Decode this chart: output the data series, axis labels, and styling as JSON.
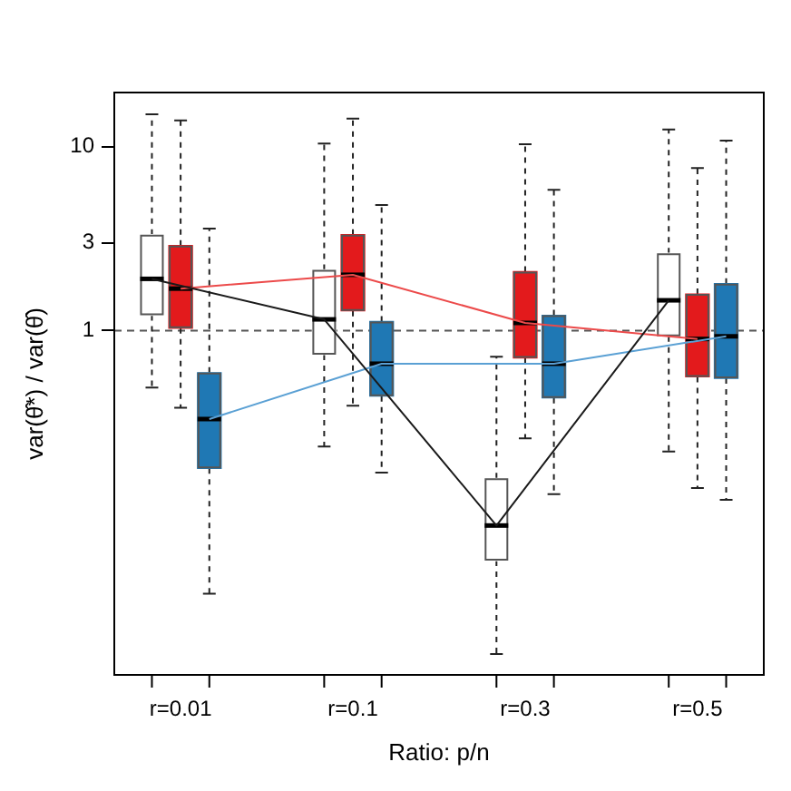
{
  "chart_data": {
    "type": "box",
    "xlabel": "Ratio: p/n",
    "ylabel": "var(θ̂*) / var(θ̂)",
    "categories": [
      "r=0.01",
      "r=0.1",
      "r=0.3",
      "r=0.5"
    ],
    "series": [
      {
        "color": "#ffffff",
        "boxes": [
          {
            "low": 0.49,
            "q1": 1.21,
            "median": 1.91,
            "q3": 3.32,
            "high": 15.0
          },
          {
            "low": 0.234,
            "q1": 0.74,
            "median": 1.15,
            "q3": 2.14,
            "high": 10.4
          },
          {
            "low": 0.0174,
            "q1": 0.056,
            "median": 0.087,
            "q3": 0.157,
            "high": 0.72
          },
          {
            "low": 0.22,
            "q1": 0.93,
            "median": 1.46,
            "q3": 2.63,
            "high": 12.4
          }
        ]
      },
      {
        "color": "#e31a1c",
        "boxes": [
          {
            "low": 0.38,
            "q1": 1.03,
            "median": 1.69,
            "q3": 2.9,
            "high": 13.9
          },
          {
            "low": 0.39,
            "q1": 1.28,
            "median": 2.01,
            "q3": 3.32,
            "high": 14.2
          },
          {
            "low": 0.259,
            "q1": 0.71,
            "median": 1.1,
            "q3": 2.09,
            "high": 10.3
          },
          {
            "low": 0.139,
            "q1": 0.56,
            "median": 0.9,
            "q3": 1.58,
            "high": 7.65
          }
        ]
      },
      {
        "color": "#1f78b4",
        "boxes": [
          {
            "low": 0.037,
            "q1": 0.178,
            "median": 0.33,
            "q3": 0.59,
            "high": 3.58
          },
          {
            "low": 0.169,
            "q1": 0.44,
            "median": 0.66,
            "q3": 1.12,
            "high": 4.81
          },
          {
            "low": 0.129,
            "q1": 0.43,
            "median": 0.66,
            "q3": 1.21,
            "high": 5.82
          },
          {
            "low": 0.12,
            "q1": 0.55,
            "median": 0.93,
            "q3": 1.8,
            "high": 10.8
          }
        ]
      },
      {
        "type": "line",
        "color": "#1a1a1a",
        "values": [
          1.91,
          1.15,
          0.087,
          1.46
        ]
      },
      {
        "type": "line",
        "color": "#ec4a4a",
        "values": [
          1.69,
          2.01,
          1.1,
          0.9
        ]
      },
      {
        "type": "line",
        "color": "#5aa0d4",
        "values": [
          0.33,
          0.66,
          0.66,
          0.93
        ]
      }
    ],
    "log": true,
    "ylim": [
      0.0134,
      19.7
    ],
    "yticks": [
      1,
      3,
      10
    ],
    "ref_lines": [
      {
        "axis": "y",
        "value": 1,
        "line_style": "dashed",
        "color": "#555555"
      }
    ]
  }
}
